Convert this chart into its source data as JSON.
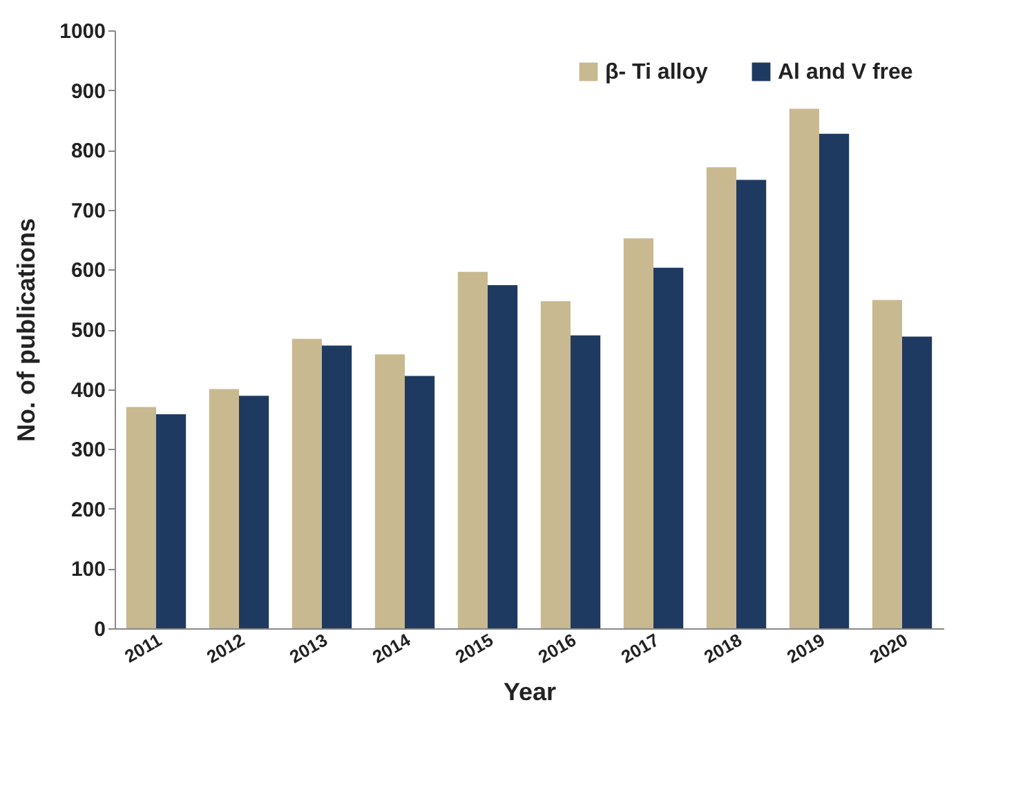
{
  "chart_data": {
    "type": "bar",
    "xlabel": "Year",
    "ylabel": "No. of publications",
    "categories": [
      "2011",
      "2012",
      "2013",
      "2014",
      "2015",
      "2016",
      "2017",
      "2018",
      "2019",
      "2020"
    ],
    "series": [
      {
        "name": "β- Ti alloy",
        "color": "#c9b990",
        "values": [
          370,
          400,
          484,
          458,
          596,
          547,
          652,
          771,
          869,
          549
        ]
      },
      {
        "name": "Al and V free",
        "color": "#1f3a60",
        "values": [
          358,
          389,
          473,
          422,
          574,
          490,
          603,
          750,
          827,
          488
        ]
      }
    ],
    "ylim": [
      0,
      1000
    ],
    "yticks": [
      0,
      100,
      200,
      300,
      400,
      500,
      600,
      700,
      800,
      900,
      1000
    ],
    "grid": false,
    "legend": "top right"
  }
}
